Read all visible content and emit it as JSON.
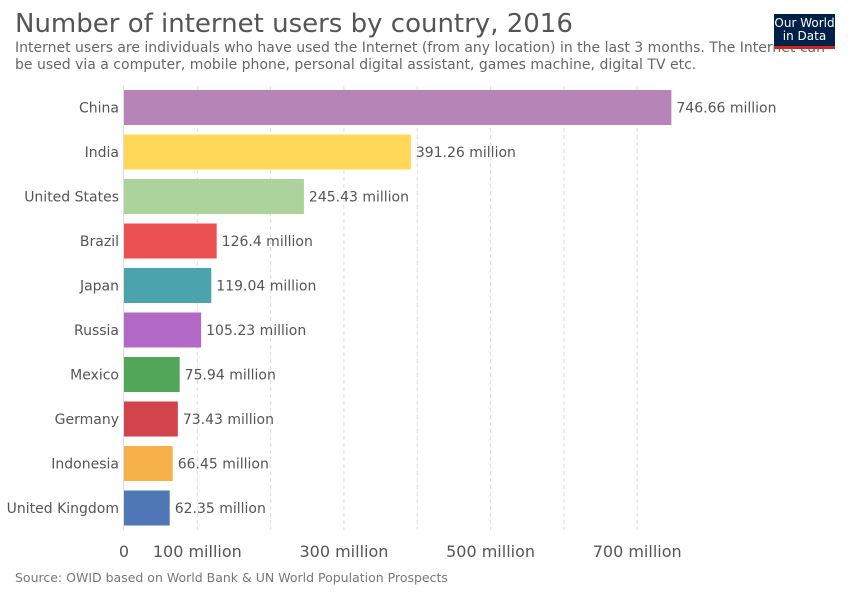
{
  "title": "Number of internet users by country, 2016",
  "subtitle": "Internet users are individuals who have used the Internet (from any location) in the last 3 months. The Internet can be used via a computer, mobile phone, personal digital assistant, games machine, digital TV etc.",
  "logo": {
    "line1": "Our World",
    "line2": "in Data"
  },
  "source": "Source: OWID based on World Bank & UN World Population Prospects",
  "chart_data": {
    "type": "bar",
    "orientation": "horizontal",
    "categories": [
      "China",
      "India",
      "United States",
      "Brazil",
      "Japan",
      "Russia",
      "Mexico",
      "Germany",
      "Indonesia",
      "United Kingdom"
    ],
    "values": [
      746.66,
      391.26,
      245.43,
      126.4,
      119.04,
      105.23,
      75.94,
      73.43,
      66.45,
      62.35
    ],
    "value_labels": [
      "746.66 million",
      "391.26 million",
      "245.43 million",
      "126.4 million",
      "119.04 million",
      "105.23 million",
      "75.94 million",
      "73.43 million",
      "66.45 million",
      "62.35 million"
    ],
    "colors": [
      "#b784b7",
      "#ffd859",
      "#acd39b",
      "#e9504f",
      "#4ba4ad",
      "#b26ac7",
      "#52a659",
      "#d1444b",
      "#f7b14a",
      "#4f77b6"
    ],
    "x_ticks": [
      0,
      100,
      300,
      500,
      700
    ],
    "x_tick_labels": [
      "0",
      "100 million",
      "300 million",
      "500 million",
      "700 million"
    ],
    "gridlines": [
      100,
      200,
      300,
      400,
      500,
      600,
      700
    ],
    "xlim": [
      0,
      800
    ],
    "grid": true
  }
}
